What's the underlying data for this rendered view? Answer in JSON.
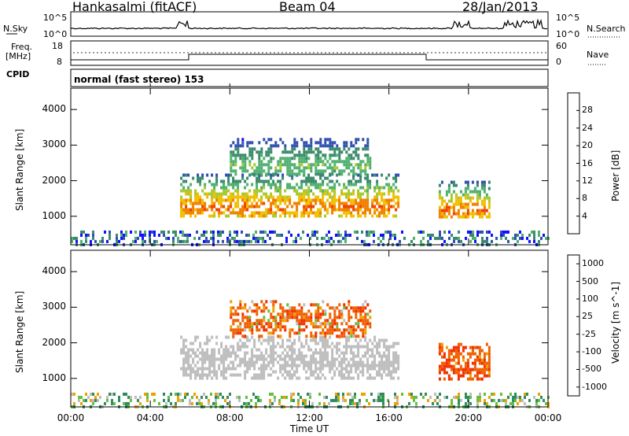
{
  "header": {
    "station": "Hankasalmi (fitACF)",
    "beam": "Beam 04",
    "date": "28/Jan/2013"
  },
  "sky_panel": {
    "left_label": "N.Sky",
    "right_label": "N.Search",
    "left_ticks": [
      "10^5",
      "10^0"
    ],
    "right_ticks": [
      "10^5",
      "10^0"
    ]
  },
  "freq_panel": {
    "left_label_line1": "Freq.",
    "left_label_line2": "[MHz]",
    "right_label": "Nave",
    "left_ticks": [
      "18",
      "8"
    ],
    "right_ticks": [
      "60",
      "0"
    ]
  },
  "cpid_panel": {
    "label": "CPID",
    "value": "normal (fast stereo) 153"
  },
  "colors": {
    "power_scale": [
      "#1010ff",
      "#3050b0",
      "#3a8a6a",
      "#50b070",
      "#a8c830",
      "#f0c000",
      "#f08000",
      "#f04000",
      "#f00000"
    ],
    "velocity_scale": [
      "#1030c8",
      "#2a60b0",
      "#2e8a60",
      "#60c040",
      "#bebebe",
      "#f0a000",
      "#f06000",
      "#f03000",
      "#f00000"
    ]
  },
  "chart_data": [
    {
      "type": "heatmap",
      "title": "Power",
      "ylabel": "Slant Range [km]",
      "xlabel": "",
      "y_ticks": [
        1000,
        2000,
        3000,
        4000
      ],
      "ylim": [
        200,
        4600
      ],
      "colorbar_label": "Power [dB]",
      "colorbar_ticks": [
        4,
        8,
        12,
        16,
        20,
        24,
        28
      ],
      "echo_regions": [
        {
          "t_start": "05:30",
          "t_end": "16:30",
          "range_km": [
            1000,
            2200
          ],
          "peak_db": 28
        },
        {
          "t_start": "08:00",
          "t_end": "15:00",
          "range_km": [
            2200,
            3200
          ],
          "peak_db": 16
        },
        {
          "t_start": "18:30",
          "t_end": "21:00",
          "range_km": [
            950,
            2000
          ],
          "peak_db": 28
        },
        {
          "t_start": "00:00",
          "t_end": "24:00",
          "range_km": [
            200,
            600
          ],
          "peak_db": 12
        }
      ]
    },
    {
      "type": "heatmap",
      "title": "Velocity",
      "ylabel": "Slant Range [km]",
      "xlabel": "Time UT",
      "x_ticks": [
        "00:00",
        "04:00",
        "08:00",
        "12:00",
        "16:00",
        "20:00",
        "00:00"
      ],
      "y_ticks": [
        1000,
        2000,
        3000,
        4000
      ],
      "ylim": [
        200,
        4600
      ],
      "colorbar_label": "Velocity [m s^-1]",
      "colorbar_ticks": [
        1000,
        500,
        100,
        25,
        -25,
        -100,
        -500,
        -1000
      ],
      "echo_regions": [
        {
          "t_start": "05:30",
          "t_end": "16:30",
          "range_km": [
            1000,
            2200
          ],
          "velocity": 0
        },
        {
          "t_start": "08:00",
          "t_end": "15:00",
          "range_km": [
            2200,
            3200
          ],
          "velocity": -300
        },
        {
          "t_start": "18:30",
          "t_end": "21:00",
          "range_km": [
            950,
            2000
          ],
          "velocity": -400
        },
        {
          "t_start": "00:00",
          "t_end": "24:00",
          "range_km": [
            200,
            600
          ],
          "velocity": 150
        }
      ]
    }
  ]
}
